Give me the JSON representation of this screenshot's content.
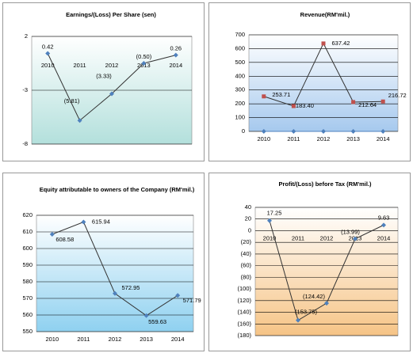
{
  "chart_data": [
    {
      "type": "line",
      "title": "Earnings/(Loss) Per Share (sen)",
      "categories": [
        "2010",
        "2011",
        "2012",
        "2013",
        "2014"
      ],
      "series": [
        {
          "color": "#4f81bd",
          "values": [
            0.42,
            -5.81,
            -3.33,
            -0.5,
            0.26
          ],
          "value_labels": [
            "0.42",
            "(5.81)",
            "(3.33)",
            "(0.50)",
            "0.26"
          ]
        }
      ],
      "ylim": [
        -8,
        2
      ],
      "yticks": [
        -8,
        -3,
        2
      ],
      "grid": true
    },
    {
      "type": "line",
      "title": "Revenue(RM'mil.)",
      "categories": [
        "2010",
        "2011",
        "2012",
        "2013",
        "2014"
      ],
      "series": [
        {
          "color": "#c0504d",
          "values": [
            253.71,
            183.4,
            637.42,
            212.64,
            216.72
          ],
          "value_labels": [
            "253.71",
            "183.40",
            "637.42",
            "212.64",
            "216.72"
          ]
        },
        {
          "color": "#4f81bd",
          "values": [
            0,
            0,
            0,
            0,
            0
          ]
        }
      ],
      "ylim": [
        0,
        700
      ],
      "yticks": [
        0,
        100,
        200,
        300,
        400,
        500,
        600,
        700
      ],
      "grid": true
    },
    {
      "type": "line",
      "title": "Equity attributable to owners of the Company (RM'mil.)",
      "categories": [
        "2010",
        "2011",
        "2012",
        "2013",
        "2014"
      ],
      "series": [
        {
          "color": "#4f81bd",
          "values": [
            608.58,
            615.94,
            572.95,
            559.63,
            571.79
          ],
          "value_labels": [
            "608.58",
            "615.94",
            "572.95",
            "559.63",
            "571.79"
          ]
        }
      ],
      "ylim": [
        550,
        620
      ],
      "yticks": [
        550,
        560,
        570,
        580,
        590,
        600,
        610,
        620
      ],
      "grid": true
    },
    {
      "type": "line",
      "title": "Profit/(Loss) before Tax (RM'mil.)",
      "categories": [
        "2010",
        "2011",
        "2012",
        "2013",
        "2014"
      ],
      "series": [
        {
          "color": "#4f81bd",
          "values": [
            17.25,
            -153.75,
            -124.42,
            -13.99,
            9.63
          ],
          "value_labels": [
            "17.25",
            "(153.75)",
            "(124.42)",
            "(13.99)",
            "9.63"
          ]
        }
      ],
      "ylim": [
        -180,
        40
      ],
      "yticks": [
        {
          "value": -180,
          "label": "(180)"
        },
        {
          "value": -160,
          "label": "(160)"
        },
        {
          "value": -140,
          "label": "(140)"
        },
        {
          "value": -120,
          "label": "(120)"
        },
        {
          "value": -100,
          "label": "(100)"
        },
        {
          "value": -80,
          "label": "(80)"
        },
        {
          "value": -60,
          "label": "(60)"
        },
        {
          "value": -40,
          "label": "(40)"
        },
        {
          "value": -20,
          "label": "(20)"
        },
        0,
        20,
        40
      ],
      "grid": true
    }
  ]
}
